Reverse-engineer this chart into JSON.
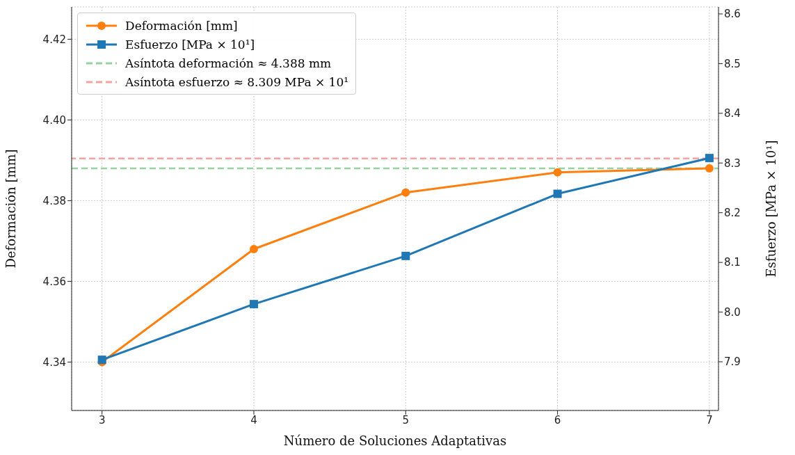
{
  "chart_data": {
    "type": "line",
    "xlabel": "Número de Soluciones Adaptativas",
    "ylabel": "Deformación [mm]",
    "y2label": "Esfuerzo [MPa × 10¹]",
    "x": [
      3,
      4,
      5,
      6,
      7
    ],
    "series": [
      {
        "name": "Deformación [mm]",
        "color": "#ff7f0e",
        "marker": "circle",
        "values": [
          4.34,
          4.368,
          4.382,
          4.387,
          4.388
        ]
      },
      {
        "name": "Esfuerzo [MPa × 10¹]",
        "color": "#1f77b4",
        "marker": "square",
        "axis": "y2",
        "values": [
          7.904,
          8.016,
          8.113,
          8.238,
          8.31
        ]
      }
    ],
    "ref_lines": [
      {
        "axis": "y",
        "value": 4.388,
        "label": "Asíntota deformación ≈ 4.388 mm",
        "color": "#96d1a1",
        "line_style": "dashed"
      },
      {
        "axis": "y2",
        "value": 8.309,
        "label": "Asíntota esfuerzo ≈ 8.309 MPa × 10¹",
        "color": "#f6a3a0",
        "line_style": "dashed"
      }
    ],
    "xlim": [
      2.8,
      7.06
    ],
    "xticks": [
      3,
      4,
      5,
      6,
      7
    ],
    "ylim": [
      4.328,
      4.428
    ],
    "yticks": [
      4.34,
      4.36,
      4.38,
      {
        "value": 4.4,
        "label": "4.40"
      },
      4.42
    ],
    "y2lim": [
      7.802,
      8.614
    ],
    "y2ticks": [
      7.9,
      {
        "value": 8,
        "label": "8.0"
      },
      8.1,
      8.2,
      8.3,
      8.4,
      8.5,
      8.6
    ],
    "grid": true,
    "legend": "top left",
    "line_style": "solid"
  }
}
